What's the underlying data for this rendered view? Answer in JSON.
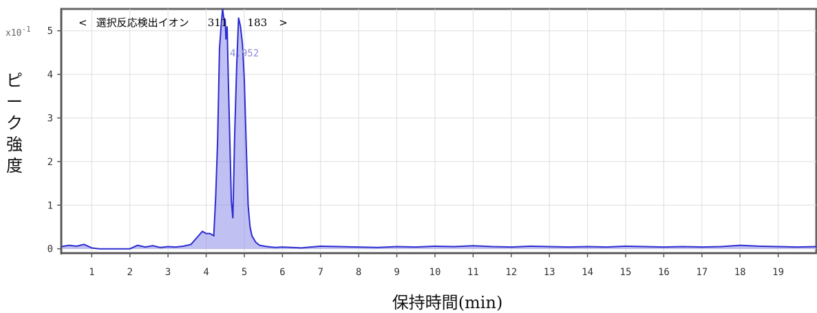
{
  "chart_data": {
    "type": "line",
    "title_open": "<",
    "title_text": "選択反応検出イオン",
    "title_precursor": "311",
    "title_product": "183",
    "title_close": ">",
    "ylabel": "ピーク強度",
    "xlabel_main": "保持時間",
    "xlabel_unit": "(min)",
    "multiplier": "x10",
    "multiplier_exp": "-1",
    "peak_label": "4.952",
    "xlim": [
      0.2,
      20.0
    ],
    "ylim": [
      -0.1,
      5.5
    ],
    "x_ticks": [
      "1",
      "2",
      "3",
      "4",
      "5",
      "6",
      "7",
      "8",
      "9",
      "10",
      "11",
      "12",
      "13",
      "14",
      "15",
      "16",
      "17",
      "18",
      "19"
    ],
    "y_ticks": [
      "0",
      "1",
      "2",
      "3",
      "4",
      "5"
    ],
    "grid": true,
    "colors": {
      "line": "#2b2bd0",
      "fill": "#8c8ce8",
      "grid": "#dddddd",
      "frame": "#666666"
    },
    "series": [
      {
        "x": [
          0.2,
          0.4,
          0.6,
          0.8,
          1.0,
          1.2,
          1.5,
          1.8,
          2.0,
          2.2,
          2.4,
          2.6,
          2.8,
          3.0,
          3.2,
          3.4,
          3.6,
          3.7,
          3.8,
          3.9,
          4.0,
          4.1,
          4.2,
          4.25,
          4.3,
          4.35,
          4.4,
          4.43,
          4.46,
          4.5,
          4.52,
          4.55,
          4.58,
          4.62,
          4.66,
          4.7,
          4.75,
          4.8,
          4.85,
          4.9,
          4.95,
          5.0,
          5.05,
          5.1,
          5.15,
          5.2,
          5.3,
          5.4,
          5.6,
          5.8,
          6.0,
          6.5,
          7.0,
          7.5,
          8.0,
          8.5,
          9.0,
          9.5,
          10.0,
          10.5,
          11.0,
          11.5,
          12.0,
          12.5,
          13.0,
          13.5,
          14.0,
          14.5,
          15.0,
          15.5,
          16.0,
          16.5,
          17.0,
          17.5,
          18.0,
          18.5,
          19.0,
          19.5,
          20.0
        ],
        "y": [
          0.05,
          0.08,
          0.06,
          0.1,
          0.02,
          0.0,
          0.0,
          0.0,
          0.0,
          0.08,
          0.04,
          0.07,
          0.03,
          0.05,
          0.04,
          0.06,
          0.1,
          0.2,
          0.3,
          0.4,
          0.35,
          0.35,
          0.3,
          1.2,
          2.5,
          4.6,
          5.2,
          5.5,
          5.3,
          5.25,
          4.8,
          5.1,
          3.9,
          2.5,
          1.1,
          0.7,
          2.7,
          4.2,
          5.3,
          5.1,
          4.7,
          3.9,
          2.4,
          1.0,
          0.5,
          0.3,
          0.15,
          0.08,
          0.05,
          0.03,
          0.04,
          0.02,
          0.06,
          0.05,
          0.04,
          0.03,
          0.05,
          0.04,
          0.06,
          0.05,
          0.07,
          0.05,
          0.04,
          0.06,
          0.05,
          0.04,
          0.05,
          0.04,
          0.06,
          0.05,
          0.04,
          0.05,
          0.04,
          0.05,
          0.08,
          0.06,
          0.05,
          0.04,
          0.05
        ]
      }
    ]
  }
}
